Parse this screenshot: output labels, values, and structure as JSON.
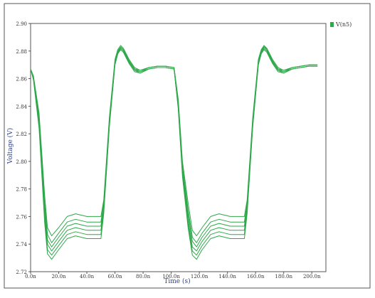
{
  "chart_data": {
    "type": "line",
    "title": "",
    "xlabel": "Time (s)",
    "ylabel": "Voltage (V)",
    "xlim": [
      0,
      210
    ],
    "ylim": [
      2.72,
      2.9
    ],
    "grid": false,
    "legend_position": "top-right",
    "legend": [
      {
        "label": "V(n5)",
        "color": "#2ea84a"
      }
    ],
    "y_ticks": [
      {
        "v": 2.72,
        "label": "2.72"
      },
      {
        "v": 2.74,
        "label": "2.74"
      },
      {
        "v": 2.76,
        "label": "2.76"
      },
      {
        "v": 2.78,
        "label": "2.78"
      },
      {
        "v": 2.8,
        "label": "2.80"
      },
      {
        "v": 2.82,
        "label": "2.82"
      },
      {
        "v": 2.84,
        "label": "2.84"
      },
      {
        "v": 2.86,
        "label": "2.86"
      },
      {
        "v": 2.88,
        "label": "2.88"
      },
      {
        "v": 2.9,
        "label": "2.90"
      }
    ],
    "x_ticks": [
      {
        "v": 0,
        "label": "0.0n"
      },
      {
        "v": 20,
        "label": "20.0n"
      },
      {
        "v": 40,
        "label": "40.0n"
      },
      {
        "v": 60,
        "label": "60.0n"
      },
      {
        "v": 80,
        "label": "80.0n"
      },
      {
        "v": 100,
        "label": "100.0n"
      },
      {
        "v": 120,
        "label": "120.0n"
      },
      {
        "v": 140,
        "label": "140.0n"
      },
      {
        "v": 160,
        "label": "160.0n"
      },
      {
        "v": 180,
        "label": "180.0n"
      },
      {
        "v": 200,
        "label": "200.0n"
      }
    ],
    "series": [
      {
        "color": "#2ea84a",
        "x": [
          0,
          2,
          6,
          10,
          12,
          15,
          20,
          26,
          32,
          40,
          50,
          52,
          56,
          60,
          62,
          64,
          66,
          70,
          74,
          78,
          84,
          90,
          96,
          102,
          105,
          108,
          112,
          115,
          118,
          122,
          128,
          134,
          142,
          152,
          154,
          158,
          162,
          164,
          166,
          168,
          172,
          176,
          180,
          186,
          192,
          198,
          204
        ],
        "y": [
          2.867,
          2.862,
          2.835,
          2.775,
          2.752,
          2.746,
          2.752,
          2.76,
          2.762,
          2.76,
          2.76,
          2.772,
          2.832,
          2.874,
          2.881,
          2.884,
          2.882,
          2.874,
          2.868,
          2.866,
          2.868,
          2.869,
          2.869,
          2.868,
          2.845,
          2.8,
          2.77,
          2.75,
          2.746,
          2.752,
          2.76,
          2.762,
          2.76,
          2.76,
          2.772,
          2.832,
          2.874,
          2.881,
          2.884,
          2.882,
          2.874,
          2.868,
          2.866,
          2.868,
          2.869,
          2.87,
          2.87
        ]
      },
      {
        "color": "#2ea84a",
        "x": [
          0,
          2,
          6,
          10,
          12,
          15,
          20,
          26,
          32,
          40,
          50,
          52,
          56,
          60,
          62,
          64,
          66,
          70,
          74,
          78,
          84,
          90,
          96,
          102,
          105,
          108,
          112,
          115,
          118,
          122,
          128,
          134,
          142,
          152,
          154,
          158,
          162,
          164,
          166,
          168,
          172,
          176,
          180,
          186,
          192,
          198,
          204
        ],
        "y": [
          2.867,
          2.861,
          2.832,
          2.77,
          2.747,
          2.741,
          2.748,
          2.756,
          2.758,
          2.756,
          2.756,
          2.77,
          2.83,
          2.873,
          2.88,
          2.883,
          2.881,
          2.873,
          2.867,
          2.866,
          2.868,
          2.869,
          2.869,
          2.868,
          2.843,
          2.797,
          2.765,
          2.745,
          2.741,
          2.748,
          2.756,
          2.758,
          2.756,
          2.756,
          2.77,
          2.83,
          2.873,
          2.88,
          2.884,
          2.881,
          2.873,
          2.867,
          2.866,
          2.868,
          2.869,
          2.87,
          2.87
        ]
      },
      {
        "color": "#2ea84a",
        "x": [
          0,
          2,
          6,
          10,
          12,
          15,
          20,
          26,
          32,
          40,
          50,
          52,
          56,
          60,
          62,
          64,
          66,
          70,
          74,
          78,
          84,
          90,
          96,
          102,
          105,
          108,
          112,
          115,
          118,
          122,
          128,
          134,
          142,
          152,
          154,
          158,
          162,
          164,
          166,
          168,
          172,
          176,
          180,
          186,
          192,
          198,
          204
        ],
        "y": [
          2.867,
          2.861,
          2.83,
          2.766,
          2.743,
          2.738,
          2.745,
          2.753,
          2.755,
          2.753,
          2.753,
          2.768,
          2.828,
          2.872,
          2.879,
          2.883,
          2.881,
          2.873,
          2.867,
          2.865,
          2.868,
          2.869,
          2.869,
          2.868,
          2.842,
          2.795,
          2.762,
          2.742,
          2.738,
          2.745,
          2.753,
          2.755,
          2.753,
          2.753,
          2.768,
          2.828,
          2.872,
          2.879,
          2.883,
          2.881,
          2.873,
          2.867,
          2.865,
          2.868,
          2.869,
          2.87,
          2.87
        ]
      },
      {
        "color": "#2ea84a",
        "x": [
          0,
          2,
          6,
          10,
          12,
          15,
          20,
          26,
          32,
          40,
          50,
          52,
          56,
          60,
          62,
          64,
          66,
          70,
          74,
          78,
          84,
          90,
          96,
          102,
          105,
          108,
          112,
          115,
          118,
          122,
          128,
          134,
          142,
          152,
          154,
          158,
          162,
          164,
          166,
          168,
          172,
          176,
          180,
          186,
          192,
          198,
          204
        ],
        "y": [
          2.867,
          2.86,
          2.828,
          2.762,
          2.74,
          2.735,
          2.742,
          2.75,
          2.752,
          2.75,
          2.75,
          2.766,
          2.827,
          2.871,
          2.879,
          2.882,
          2.88,
          2.872,
          2.866,
          2.865,
          2.867,
          2.868,
          2.868,
          2.867,
          2.84,
          2.793,
          2.758,
          2.738,
          2.735,
          2.742,
          2.75,
          2.752,
          2.75,
          2.75,
          2.766,
          2.827,
          2.871,
          2.879,
          2.882,
          2.88,
          2.872,
          2.866,
          2.865,
          2.867,
          2.868,
          2.869,
          2.869
        ]
      },
      {
        "color": "#2ea84a",
        "x": [
          0,
          2,
          6,
          10,
          12,
          15,
          20,
          26,
          32,
          40,
          50,
          52,
          56,
          60,
          62,
          64,
          66,
          70,
          74,
          78,
          84,
          90,
          96,
          102,
          105,
          108,
          112,
          115,
          118,
          122,
          128,
          134,
          142,
          152,
          154,
          158,
          162,
          164,
          166,
          168,
          172,
          176,
          180,
          186,
          192,
          198,
          204
        ],
        "y": [
          2.867,
          2.86,
          2.826,
          2.758,
          2.736,
          2.732,
          2.739,
          2.747,
          2.749,
          2.747,
          2.747,
          2.764,
          2.826,
          2.871,
          2.878,
          2.882,
          2.88,
          2.872,
          2.866,
          2.864,
          2.867,
          2.868,
          2.868,
          2.867,
          2.839,
          2.791,
          2.755,
          2.735,
          2.732,
          2.739,
          2.747,
          2.749,
          2.747,
          2.747,
          2.764,
          2.826,
          2.871,
          2.878,
          2.882,
          2.88,
          2.872,
          2.866,
          2.864,
          2.867,
          2.868,
          2.869,
          2.869
        ]
      },
      {
        "color": "#2ea84a",
        "x": [
          0,
          2,
          6,
          10,
          12,
          15,
          20,
          26,
          32,
          40,
          50,
          52,
          56,
          60,
          62,
          64,
          66,
          70,
          74,
          78,
          84,
          90,
          96,
          102,
          105,
          108,
          112,
          115,
          118,
          122,
          128,
          134,
          142,
          152,
          154,
          158,
          162,
          164,
          166,
          168,
          172,
          176,
          180,
          186,
          192,
          198,
          204
        ],
        "y": [
          2.867,
          2.859,
          2.824,
          2.755,
          2.733,
          2.729,
          2.736,
          2.744,
          2.746,
          2.744,
          2.744,
          2.762,
          2.825,
          2.87,
          2.878,
          2.881,
          2.879,
          2.871,
          2.865,
          2.864,
          2.867,
          2.868,
          2.868,
          2.867,
          2.838,
          2.789,
          2.752,
          2.732,
          2.729,
          2.736,
          2.744,
          2.746,
          2.744,
          2.744,
          2.762,
          2.825,
          2.87,
          2.878,
          2.881,
          2.879,
          2.871,
          2.865,
          2.864,
          2.867,
          2.868,
          2.869,
          2.869
        ]
      }
    ]
  }
}
